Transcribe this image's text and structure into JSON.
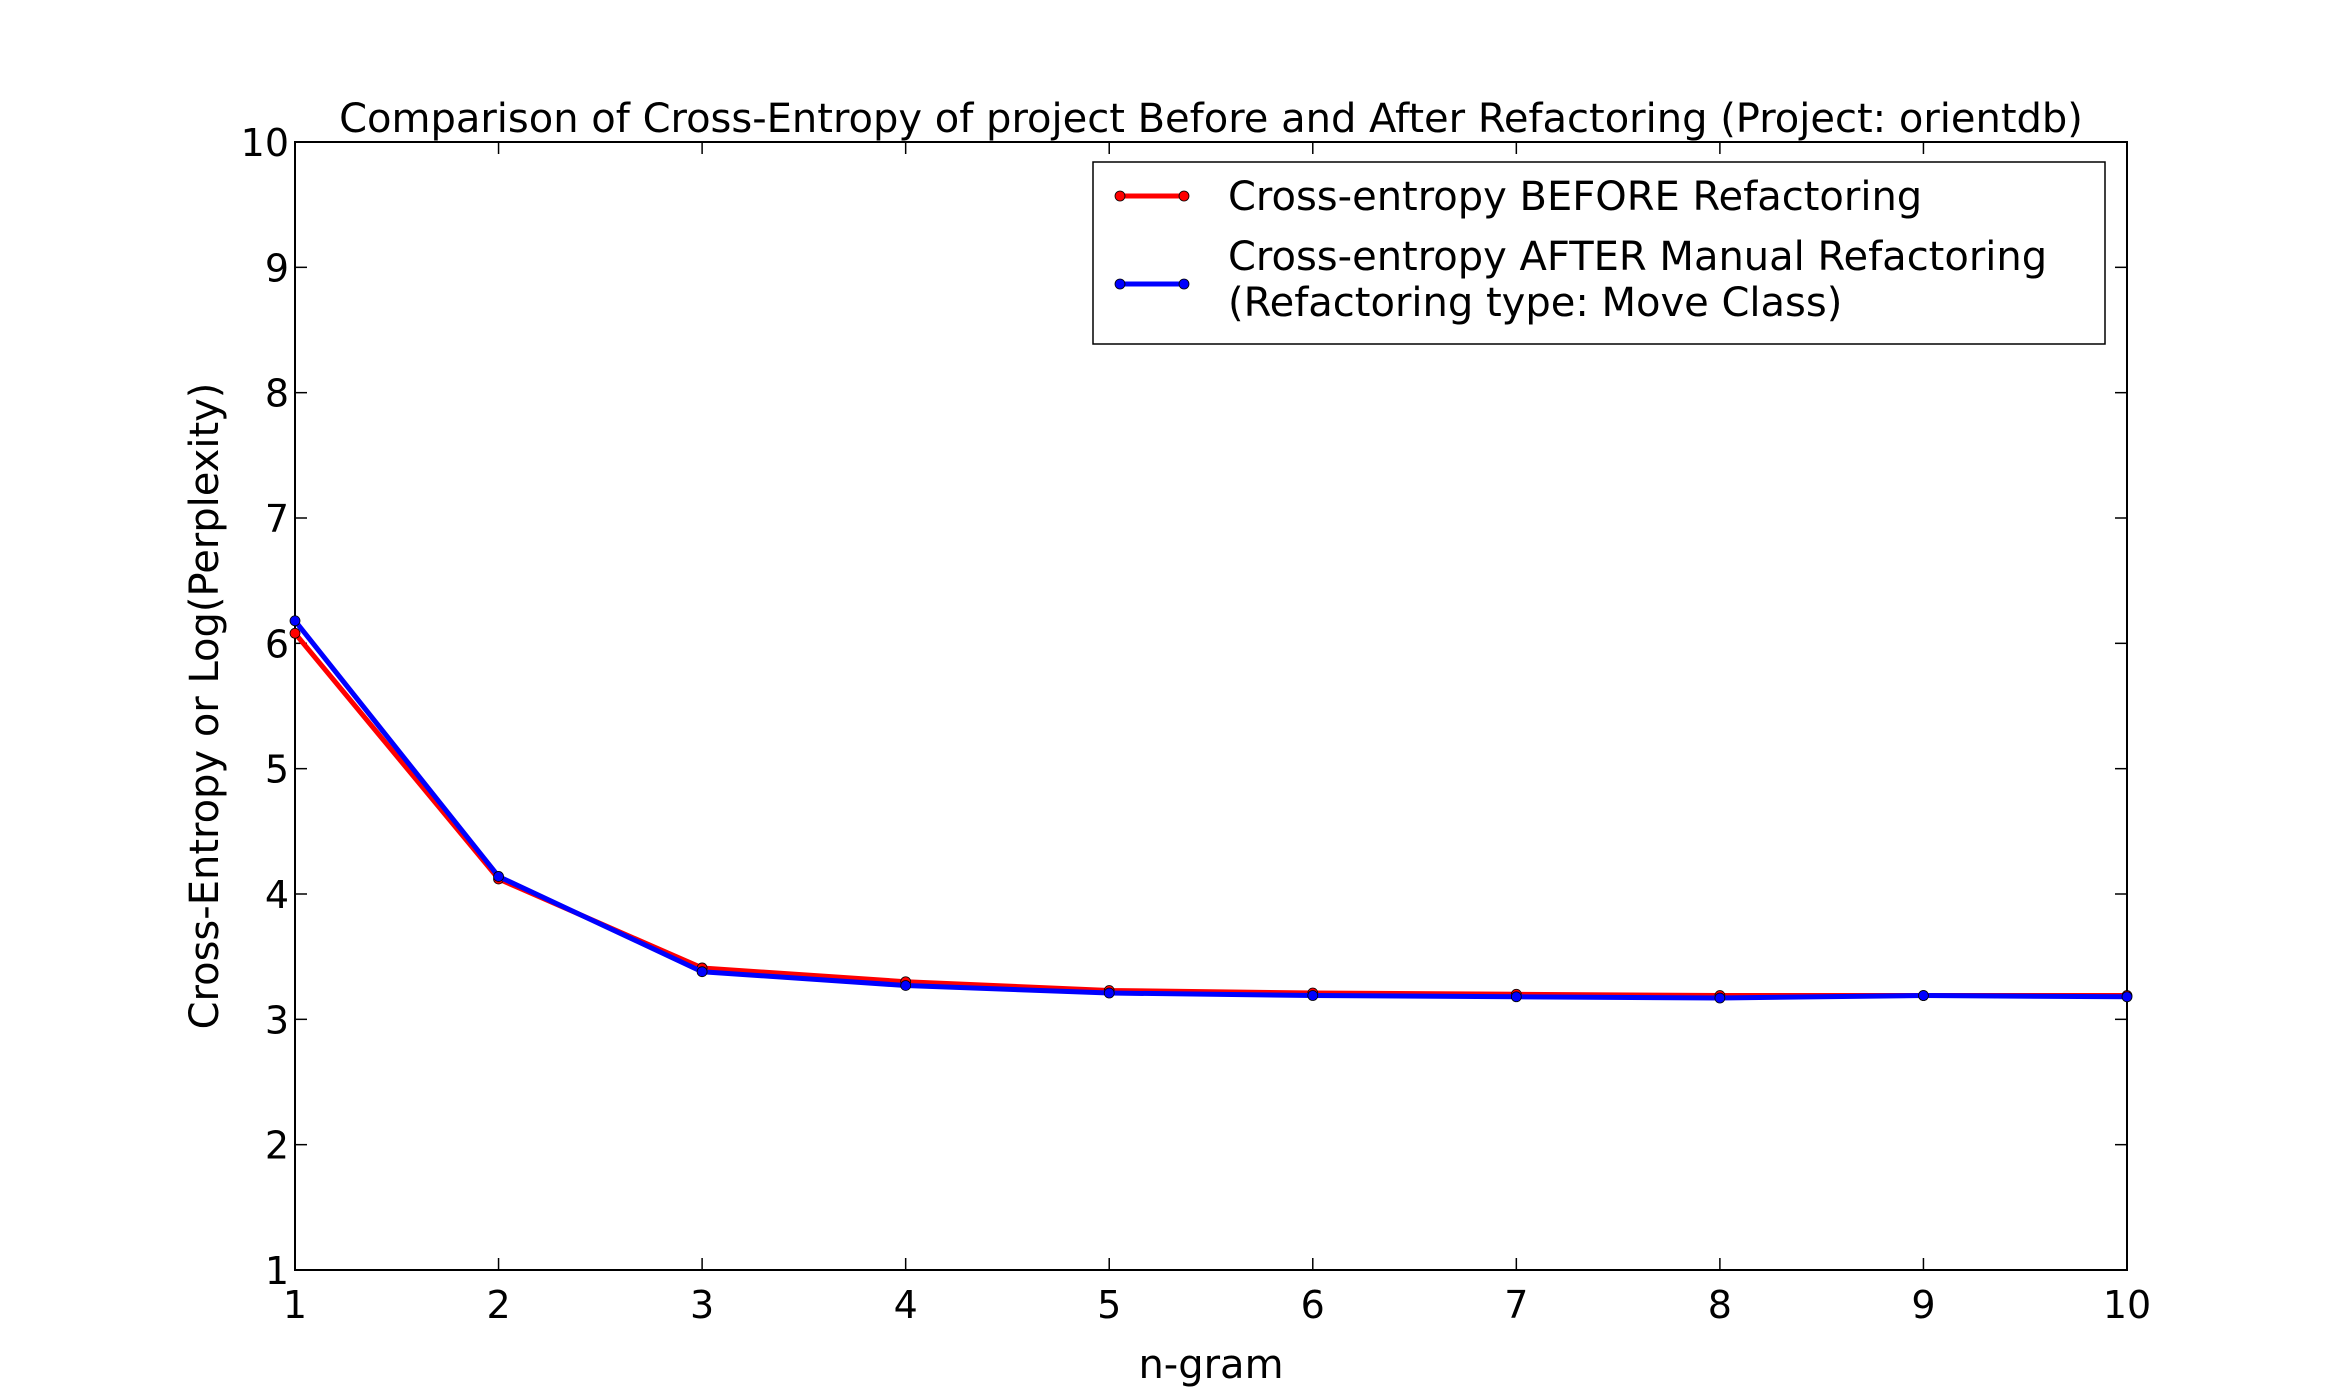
{
  "chart_data": {
    "type": "line",
    "title": "Comparison of Cross-Entropy of project Before and After Refactoring (Project: orientdb)",
    "xlabel": "n-gram",
    "ylabel": "Cross-Entropy or Log(Perplexity)",
    "x": [
      1,
      2,
      3,
      4,
      5,
      6,
      7,
      8,
      9,
      10
    ],
    "xlim": [
      1,
      10
    ],
    "ylim": [
      1,
      10
    ],
    "x_ticks": [
      "1",
      "2",
      "3",
      "4",
      "5",
      "6",
      "7",
      "8",
      "9",
      "10"
    ],
    "y_ticks": [
      "1",
      "2",
      "3",
      "4",
      "5",
      "6",
      "7",
      "8",
      "9",
      "10"
    ],
    "grid": false,
    "legend_position": "top-right",
    "series": [
      {
        "name": "Cross-entropy BEFORE Refactoring",
        "color": "#ff0000",
        "values": [
          6.08,
          4.12,
          3.41,
          3.3,
          3.23,
          3.21,
          3.2,
          3.19,
          3.19,
          3.19
        ]
      },
      {
        "name": "Cross-entropy AFTER Manual Refactoring\n(Refactoring type: Move Class)",
        "name_lines": [
          "Cross-entropy AFTER Manual Refactoring",
          "(Refactoring type: Move Class)"
        ],
        "color": "#0000ff",
        "values": [
          6.18,
          4.14,
          3.38,
          3.27,
          3.21,
          3.19,
          3.18,
          3.17,
          3.19,
          3.18
        ]
      }
    ]
  }
}
